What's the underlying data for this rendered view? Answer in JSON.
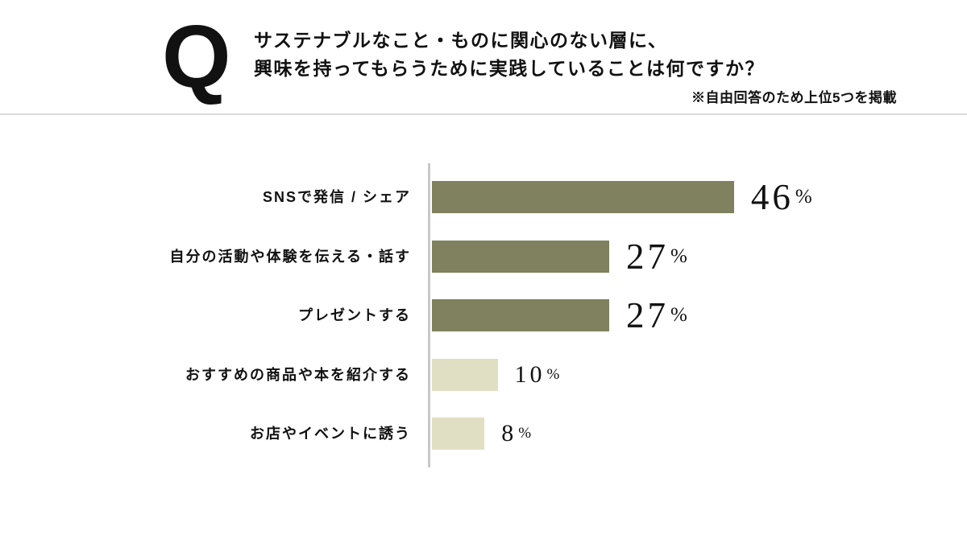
{
  "header": {
    "q_mark": "Q",
    "title_lines": [
      "サステナブルなこと・ものに関心のない層に、",
      "興味を持ってもらうために実践していることは何ですか？"
    ],
    "note": "※自由回答のため上位5つを掲載"
  },
  "chart_data": {
    "type": "bar",
    "orientation": "horizontal",
    "title": "サステナブルなこと・ものに関心のない層に、興味を持ってもらうために実践していることは何ですか？",
    "subtitle": "※自由回答のため上位5つを掲載",
    "categories": [
      "SNSで発信 / シェア",
      "自分の活動や体験を伝える・話す",
      "プレゼントする",
      "おすすめの商品や本を紹介する",
      "お店やイベントに誘う"
    ],
    "values": [
      46,
      27,
      27,
      10,
      8
    ],
    "unit": "%",
    "highlighted": [
      true,
      true,
      true,
      false,
      false
    ],
    "xlim": [
      0,
      50
    ],
    "grid": false,
    "legend": "none",
    "colors": {
      "highlight_bar": "#7f815f",
      "muted_bar": "#e0dfc4",
      "axis_line": "#c8c8c8",
      "text": "#111111"
    }
  }
}
